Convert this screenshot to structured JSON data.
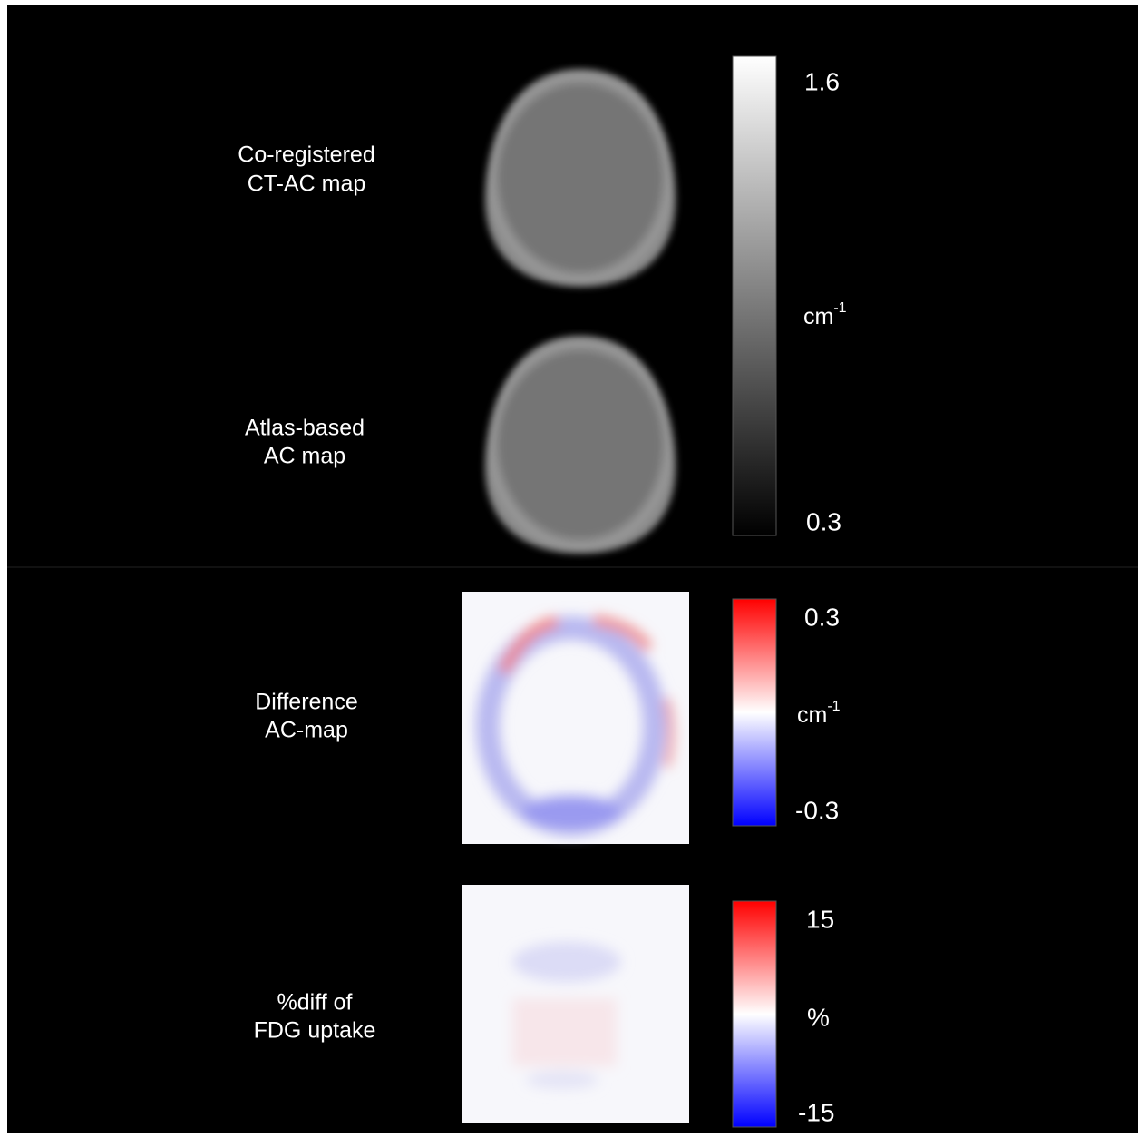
{
  "panels": [
    {
      "label": [
        "Co-registered",
        "CT-AC map"
      ]
    },
    {
      "label": [
        "Atlas-based",
        "AC map"
      ]
    },
    {
      "label": [
        "Difference",
        "AC-map"
      ]
    },
    {
      "label": [
        "%diff of",
        "FDG uptake"
      ]
    }
  ],
  "colorbars": [
    {
      "max": "1.6",
      "min": "0.3",
      "unit": "cm",
      "unit_sup": "-1"
    },
    {
      "max": "0.3",
      "min": "-0.3",
      "unit": "cm",
      "unit_sup": "-1"
    },
    {
      "max": "15",
      "min": "-15",
      "unit": "%"
    }
  ]
}
